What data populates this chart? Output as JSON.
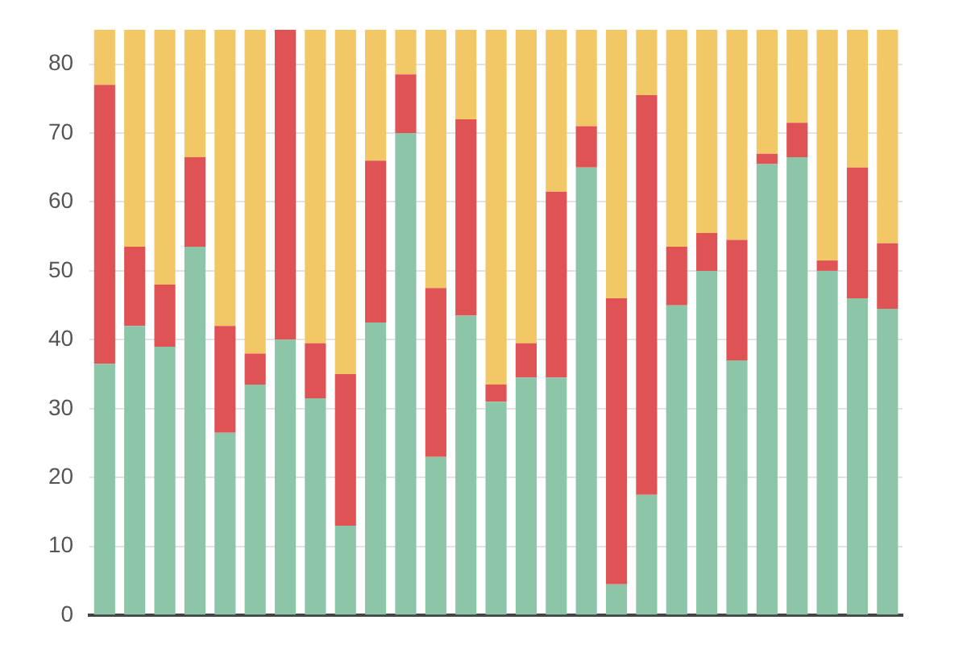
{
  "chart_data": {
    "type": "bar",
    "stacked": true,
    "categories": [
      null,
      null,
      null,
      null,
      null,
      null,
      null,
      null,
      null,
      null,
      null,
      null,
      null,
      null,
      null,
      null,
      null,
      null,
      null,
      null,
      null,
      null,
      null,
      null,
      null,
      null,
      null
    ],
    "series": [
      {
        "color": "#8cc5a8",
        "values": [
          36.5,
          42,
          39,
          53.5,
          26.5,
          33.5,
          40,
          31.5,
          13,
          42.5,
          70,
          23,
          43.5,
          31,
          34.5,
          34.5,
          65,
          4.5,
          17.5,
          45,
          50,
          37,
          65.5,
          66.5,
          50,
          46,
          44.5
        ]
      },
      {
        "color": "#e05355",
        "values": [
          40.5,
          11.5,
          9,
          13,
          15.5,
          4.5,
          45,
          8,
          22,
          23.5,
          8.5,
          24.5,
          28.5,
          2.5,
          5,
          27,
          6,
          41.5,
          58,
          8.5,
          5.5,
          17.5,
          1.5,
          5,
          1.5,
          19,
          9.5
        ]
      },
      {
        "color": "#f1c865",
        "values": [
          8,
          31.5,
          37,
          18.5,
          43,
          47,
          0,
          45.5,
          50,
          19,
          6.5,
          37.5,
          13,
          51.5,
          45.5,
          23.5,
          14,
          39,
          9.5,
          31.5,
          29.5,
          30.5,
          18,
          13.5,
          33.5,
          20,
          31
        ]
      }
    ],
    "ylim": [
      0,
      85
    ],
    "yticks": [
      0,
      10,
      20,
      30,
      40,
      50,
      60,
      70,
      80
    ],
    "grid": "y",
    "legend": false,
    "tick_labels": "y"
  }
}
